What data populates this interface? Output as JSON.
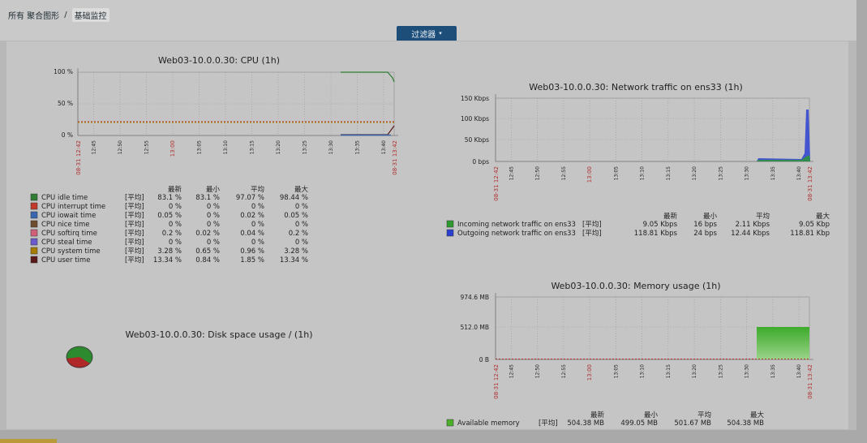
{
  "breadcrumb": {
    "root": "所有 聚合图形",
    "separator": "/",
    "current": "基础监控"
  },
  "filter": {
    "label": "过滤器",
    "caret": "▾"
  },
  "stat_headers": [
    "最新",
    "最小",
    "平均",
    "最大"
  ],
  "time_ticks": [
    "12:45",
    "12:50",
    "12:55",
    "13:00",
    "13:05",
    "13:10",
    "13:15",
    "13:20",
    "13:25",
    "13:30",
    "13:35",
    "13:40"
  ],
  "time_start": "08-31 12:42",
  "time_end": "08-31 13:42",
  "cpu": {
    "title": "Web03-10.0.0.30: CPU (1h)",
    "yticks": [
      "100 %",
      "50 %",
      "0 %"
    ],
    "legend": [
      {
        "name": "CPU idle time",
        "color": "#2e7d32",
        "func": "[平均]",
        "last": "83.1 %",
        "min": "83.1 %",
        "avg": "97.07 %",
        "max": "98.44 %"
      },
      {
        "name": "CPU interrupt time",
        "color": "#c0392b",
        "func": "[平均]",
        "last": "0 %",
        "min": "0 %",
        "avg": "0 %",
        "max": "0 %"
      },
      {
        "name": "CPU iowait time",
        "color": "#3a66b0",
        "func": "[平均]",
        "last": "0.05 %",
        "min": "0 %",
        "avg": "0.02 %",
        "max": "0.05 %"
      },
      {
        "name": "CPU nice time",
        "color": "#6d4c2f",
        "func": "[平均]",
        "last": "0 %",
        "min": "0 %",
        "avg": "0 %",
        "max": "0 %"
      },
      {
        "name": "CPU softirq time",
        "color": "#d0607a",
        "func": "[平均]",
        "last": "0.2 %",
        "min": "0.02 %",
        "avg": "0.04 %",
        "max": "0.2 %"
      },
      {
        "name": "CPU steal time",
        "color": "#6a5acd",
        "func": "[平均]",
        "last": "0 %",
        "min": "0 %",
        "avg": "0 %",
        "max": "0 %"
      },
      {
        "name": "CPU system time",
        "color": "#a67c00",
        "func": "[平均]",
        "last": "3.28 %",
        "min": "0.65 %",
        "avg": "0.96 %",
        "max": "3.28 %"
      },
      {
        "name": "CPU user time",
        "color": "#5a1a1a",
        "func": "[平均]",
        "last": "13.34 %",
        "min": "0.84 %",
        "avg": "1.85 %",
        "max": "13.34 %"
      }
    ]
  },
  "network": {
    "title": "Web03-10.0.0.30: Network traffic on ens33 (1h)",
    "yticks": [
      "150 Kbps",
      "100 Kbps",
      "50 Kbps",
      "0 bps"
    ],
    "legend": [
      {
        "name": "Incoming network traffic on ens33",
        "color": "#2e9a2e",
        "func": "[平均]",
        "last": "9.05 Kbps",
        "min": "16 bps",
        "avg": "2.11 Kbps",
        "max": "9.05 Kbp"
      },
      {
        "name": "Outgoing network traffic on ens33",
        "color": "#2a3fd0",
        "func": "[平均]",
        "last": "118.81 Kbps",
        "min": "24 bps",
        "avg": "12.44 Kbps",
        "max": "118.81 Kbp"
      }
    ]
  },
  "memory": {
    "title": "Web03-10.0.0.30: Memory usage (1h)",
    "yticks": [
      "974.6 MB",
      "512.0 MB",
      "0 B"
    ],
    "legend": [
      {
        "name": "Available memory",
        "color": "#4caf2a",
        "func": "[平均]",
        "last": "504.38 MB",
        "min": "499.05 MB",
        "avg": "501.67 MB",
        "max": "504.38 MB"
      }
    ]
  },
  "disk": {
    "title": "Web03-10.0.0.30: Disk space usage / (1h)"
  },
  "colors": {
    "grid": "#9a9a9a",
    "red_time": "#b03030"
  }
}
